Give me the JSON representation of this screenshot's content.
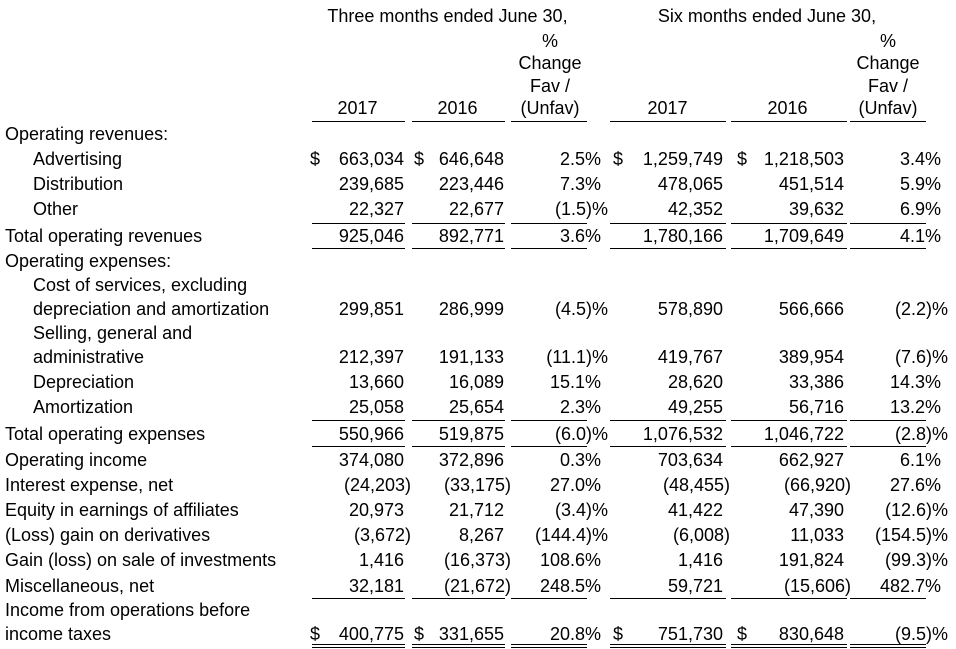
{
  "header": {
    "three_months": "Three months ended June 30,",
    "six_months": "Six months ended June 30,",
    "pct_lines": [
      "%",
      "Change",
      "Fav /",
      "(Unfav)"
    ],
    "year_2017": "2017",
    "year_2016": "2016"
  },
  "sections": {
    "op_revenues": "Operating revenues:",
    "op_expenses": "Operating expenses:"
  },
  "rows": [
    {
      "id": "advertising",
      "label": "Advertising",
      "cur1": "$",
      "v2017": "663,034",
      "cur2": "$",
      "v2016": "646,648",
      "pct3": "2.5%",
      "cur3": "$",
      "s2017": "1,259,749",
      "cur4": "$",
      "s2016": "1,218,503",
      "pct6": "3.4%"
    },
    {
      "id": "distribution",
      "label": "Distribution",
      "v2017": "239,685",
      "v2016": "223,446",
      "pct3": "7.3%",
      "s2017": "478,065",
      "s2016": "451,514",
      "pct6": "5.9%"
    },
    {
      "id": "other",
      "label": "Other",
      "v2017": "22,327",
      "v2016": "22,677",
      "pct3": "(1.5)%",
      "s2017": "42,352",
      "s2016": "39,632",
      "pct6": "6.9%"
    },
    {
      "id": "total-revenues",
      "label": "Total operating revenues",
      "v2017": "925,046",
      "v2016": "892,771",
      "pct3": "3.6%",
      "s2017": "1,780,166",
      "s2016": "1,709,649",
      "pct6": "4.1%"
    },
    {
      "id": "cost-of-services",
      "label1": "Cost of services, excluding",
      "label": "depreciation and amortization",
      "v2017": "299,851",
      "v2016": "286,999",
      "pct3": "(4.5)%",
      "s2017": "578,890",
      "s2016": "566,666",
      "pct6": "(2.2)%"
    },
    {
      "id": "sga",
      "label1": "Selling, general and",
      "label": "administrative",
      "v2017": "212,397",
      "v2016": "191,133",
      "pct3": "(11.1)%",
      "s2017": "419,767",
      "s2016": "389,954",
      "pct6": "(7.6)%"
    },
    {
      "id": "depreciation",
      "label": "Depreciation",
      "v2017": "13,660",
      "v2016": "16,089",
      "pct3": "15.1%",
      "s2017": "28,620",
      "s2016": "33,386",
      "pct6": "14.3%"
    },
    {
      "id": "amortization",
      "label": "Amortization",
      "v2017": "25,058",
      "v2016": "25,654",
      "pct3": "2.3%",
      "s2017": "49,255",
      "s2016": "56,716",
      "pct6": "13.2%"
    },
    {
      "id": "total-expenses",
      "label": "Total operating expenses",
      "v2017": "550,966",
      "v2016": "519,875",
      "pct3": "(6.0)%",
      "s2017": "1,076,532",
      "s2016": "1,046,722",
      "pct6": "(2.8)%"
    },
    {
      "id": "operating-income",
      "label": "Operating income",
      "v2017": "374,080",
      "v2016": "372,896",
      "pct3": "0.3%",
      "s2017": "703,634",
      "s2016": "662,927",
      "pct6": "6.1%"
    },
    {
      "id": "interest-expense",
      "label": "Interest expense, net",
      "v2017": "(24,203)",
      "v2016": "(33,175)",
      "pct3": "27.0%",
      "s2017": "(48,455)",
      "s2016": "(66,920)",
      "pct6": "27.6%"
    },
    {
      "id": "equity-earnings",
      "label": "Equity in earnings of affiliates",
      "v2017": "20,973",
      "v2016": "21,712",
      "pct3": "(3.4)%",
      "s2017": "41,422",
      "s2016": "47,390",
      "pct6": "(12.6)%"
    },
    {
      "id": "derivatives",
      "label": "(Loss) gain on derivatives",
      "v2017": "(3,672)",
      "v2016": "8,267",
      "pct3": "(144.4)%",
      "s2017": "(6,008)",
      "s2016": "11,033",
      "pct6": "(154.5)%"
    },
    {
      "id": "sale-investments",
      "label": "Gain (loss) on sale of investments",
      "v2017": "1,416",
      "v2016": "(16,373)",
      "pct3": "108.6%",
      "s2017": "1,416",
      "s2016": "191,824",
      "pct6": "(99.3)%"
    },
    {
      "id": "miscellaneous",
      "label": "Miscellaneous, net",
      "v2017": "32,181",
      "v2016": "(21,672)",
      "pct3": "248.5%",
      "s2017": "59,721",
      "s2016": "(15,606)",
      "pct6": "482.7%"
    },
    {
      "id": "income-before-taxes",
      "label1": "Income from operations before",
      "label": "income taxes",
      "cur1": "$",
      "v2017": "400,775",
      "cur2": "$",
      "v2016": "331,655",
      "pct3": "20.8%",
      "cur3": "$",
      "s2017": "751,730",
      "cur4": "$",
      "s2016": "830,648",
      "pct6": "(9.5)%"
    }
  ]
}
